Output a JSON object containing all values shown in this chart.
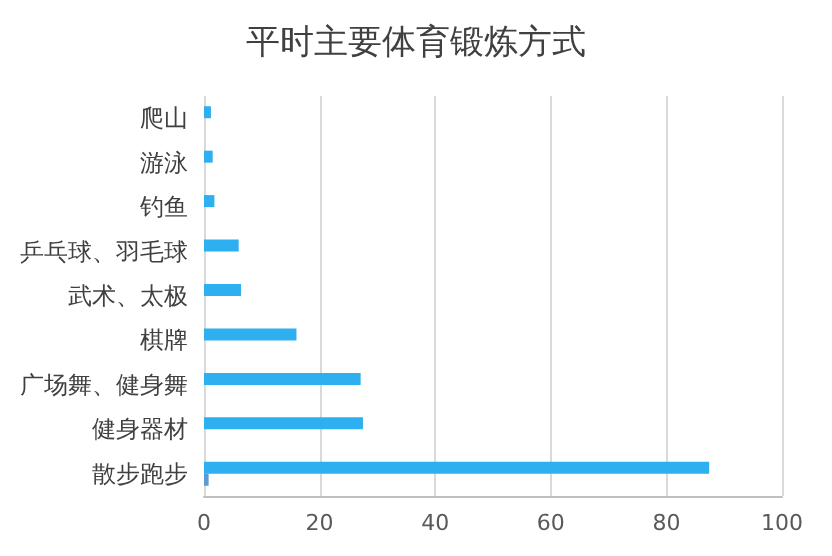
{
  "chart_data": {
    "type": "bar",
    "orientation": "horizontal",
    "title": "平时主要体育锻炼方式",
    "categories": [
      "爬山",
      "游泳",
      "钓鱼",
      "乒乓球、羽毛球",
      "武术、太极",
      "棋牌",
      "广场舞、健身舞",
      "健身器材",
      "散步跑步"
    ],
    "series": [
      {
        "color": "#2eaff0",
        "values": [
          1.2,
          1.5,
          1.8,
          6.0,
          6.4,
          16.0,
          27.1,
          27.5,
          87.4
        ]
      },
      {
        "color": "#5b9bd5",
        "values": [
          null,
          null,
          null,
          null,
          null,
          null,
          null,
          null,
          0.8
        ]
      }
    ],
    "xlim": [
      0,
      100
    ],
    "xticks": [
      0,
      20,
      40,
      60,
      80,
      100
    ],
    "grid": "x"
  }
}
